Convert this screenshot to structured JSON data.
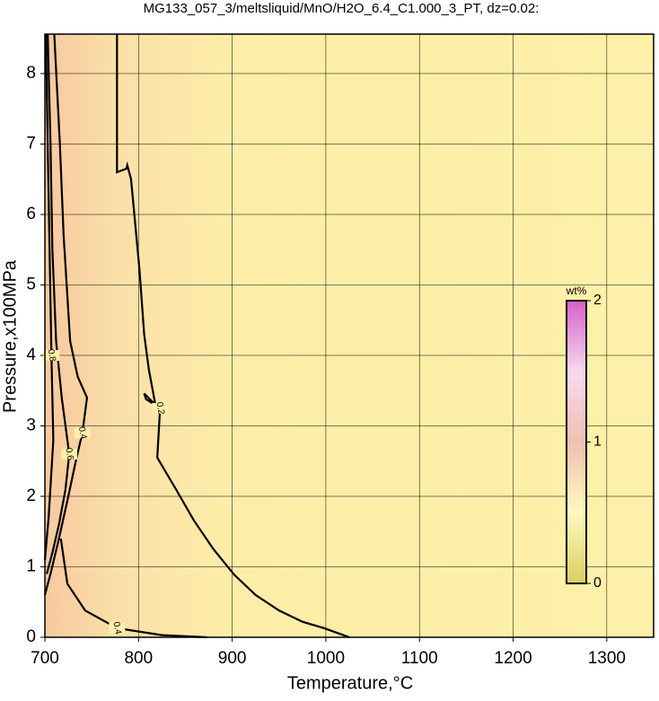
{
  "chart_data": {
    "type": "contour",
    "title": "MG133_057_3/meltsliquid/MnO/H2O_6.4_C1.000_3_PT, dz=0.02:",
    "x_label": "Temperature,°C",
    "y_label": "Pressure,x100MPa",
    "xlim": [
      700,
      1350
    ],
    "ylim": [
      0,
      8.56
    ],
    "xticks": [
      700,
      800,
      900,
      1000,
      1100,
      1200,
      1300
    ],
    "yticks": [
      0,
      1,
      2,
      3,
      4,
      5,
      6,
      7,
      8
    ],
    "grid": true,
    "contours": [
      {
        "level": 0.2,
        "color": "#000000",
        "x": [
          777,
          777,
          787,
          788,
          792,
          801,
          806,
          811,
          818,
          806,
          808,
          823,
          820,
          840,
          859,
          880,
          902,
          925,
          950,
          975,
          998,
          1025
        ],
        "y": [
          8.56,
          6.6,
          6.65,
          6.7,
          6.5,
          5.22,
          4.3,
          3.8,
          3.3,
          3.46,
          3.38,
          3.25,
          2.55,
          2.1,
          1.66,
          1.25,
          0.89,
          0.6,
          0.38,
          0.22,
          0.13,
          0
        ]
      },
      {
        "level": 0.4,
        "color": "#000000",
        "x": [
          710,
          716,
          720,
          727,
          735,
          745,
          740,
          733,
          725,
          715,
          706,
          700
        ],
        "y": [
          8.56,
          7,
          5.7,
          4.2,
          3.7,
          3.4,
          2.9,
          2.5,
          2.0,
          1.4,
          0.9,
          0.6
        ]
      },
      {
        "level": 0.4,
        "color": "#000000",
        "x": [
          717,
          724,
          743,
          777,
          825,
          873
        ],
        "y": [
          1.4,
          0.76,
          0.38,
          0.13,
          0.03,
          0
        ]
      },
      {
        "level": 0.6,
        "color": "#000000",
        "x": [
          703,
          706,
          708,
          712,
          718,
          726,
          722,
          715,
          708,
          702
        ],
        "y": [
          8.56,
          7,
          5.5,
          4.2,
          3.4,
          2.6,
          2.1,
          1.6,
          1.2,
          0.9
        ]
      },
      {
        "level": 0.8,
        "color": "#000000",
        "x": [
          701,
          703,
          705,
          707,
          709,
          704,
          700
        ],
        "y": [
          8.56,
          7,
          5.5,
          4,
          2.8,
          1.7,
          1.1
        ]
      }
    ],
    "colorbar": {
      "label": "wt%",
      "lim": [
        0,
        2
      ],
      "ticks": [
        0,
        1,
        2
      ]
    }
  }
}
